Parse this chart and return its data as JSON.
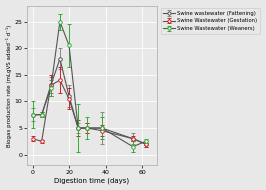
{
  "title": "",
  "xlabel": "Digestion time (days)",
  "ylabel": "Biogas production rate (mLgVS added⁻¹ d⁻¹)",
  "legend": [
    "Swine wastewater (Fattening)",
    "Swine Wastewater (Gestation)",
    "Swine Wastewater (Weaners)"
  ],
  "line_colors": [
    "#555555",
    "#555555",
    "#555555"
  ],
  "error_colors": [
    "#888888",
    "#cc2222",
    "#33aa33"
  ],
  "marker_edge_colors": [
    "#555555",
    "#cc2222",
    "#33aa33"
  ],
  "x": [
    0,
    5,
    10,
    15,
    20,
    25,
    30,
    38,
    55,
    62
  ],
  "fattening_y": [
    7.5,
    7.5,
    13.0,
    18.0,
    11.0,
    5.0,
    5.0,
    5.0,
    3.0,
    2.0
  ],
  "fattening_err": [
    1.2,
    0.5,
    1.5,
    2.0,
    2.0,
    1.0,
    1.0,
    3.0,
    1.0,
    0.5
  ],
  "gestation_y": [
    3.0,
    2.5,
    13.0,
    14.0,
    10.5,
    5.0,
    5.0,
    4.5,
    3.0,
    2.0
  ],
  "gestation_err": [
    0.5,
    0.3,
    2.0,
    2.5,
    2.0,
    1.5,
    1.0,
    1.0,
    0.5,
    0.5
  ],
  "weaners_y": [
    7.5,
    7.5,
    12.5,
    25.0,
    20.5,
    5.0,
    5.0,
    5.0,
    1.5,
    2.5
  ],
  "weaners_err": [
    2.5,
    0.5,
    1.5,
    1.5,
    4.0,
    4.5,
    2.0,
    2.0,
    1.0,
    0.5
  ],
  "ylim": [
    -2,
    28
  ],
  "xlim": [
    -3,
    68
  ],
  "yticks": [
    0,
    5,
    10,
    15,
    20,
    25
  ],
  "xticks": [
    0,
    20,
    40,
    60
  ],
  "bg_color": "#e8e8e8",
  "plot_bg": "#e8e8e8",
  "marker": "o",
  "markersize": 2.5,
  "linewidth": 0.8,
  "capsize": 1.5,
  "elinewidth": 0.7
}
